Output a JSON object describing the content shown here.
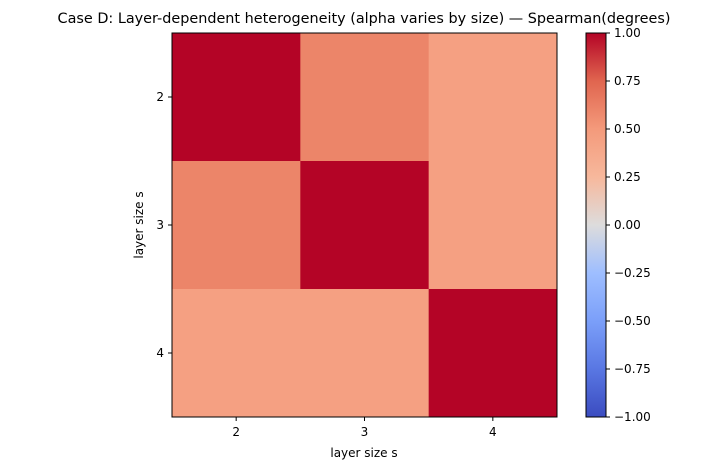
{
  "chart_data": {
    "type": "heatmap",
    "title": "Case D: Layer-dependent heterogeneity (alpha varies by size) — Spearman(degrees)",
    "xlabel": "layer size s",
    "ylabel": "layer size s",
    "x_categories": [
      "2",
      "3",
      "4"
    ],
    "y_categories": [
      "2",
      "3",
      "4"
    ],
    "values": [
      [
        1.0,
        0.6,
        0.45
      ],
      [
        0.6,
        1.0,
        0.45
      ],
      [
        0.45,
        0.45,
        1.0
      ]
    ],
    "colormap": "coolwarm",
    "vmin": -1.0,
    "vmax": 1.0,
    "colorbar_ticks": [
      "1.00",
      "0.75",
      "0.50",
      "0.25",
      "0.00",
      "−0.25",
      "−0.50",
      "−0.75",
      "−1.00"
    ],
    "colorbar_tick_values": [
      1.0,
      0.75,
      0.5,
      0.25,
      0.0,
      -0.25,
      -0.5,
      -0.75,
      -1.0
    ],
    "grid": false
  }
}
